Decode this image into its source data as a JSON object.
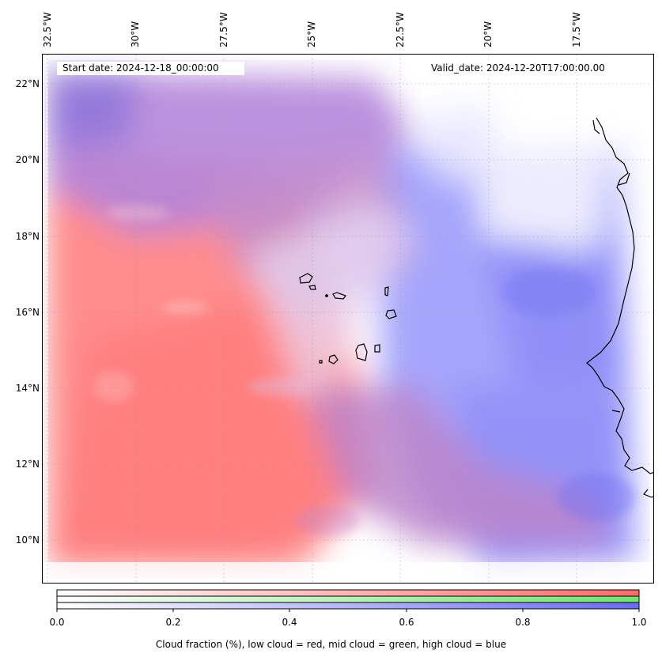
{
  "map": {
    "start_date": "Start date: 2024-12-18_00:00:00",
    "valid_date": "Valid_date: 2024-12-20T17:00:00.00",
    "lon_ticks": [
      "32.5°W",
      "30°W",
      "27.5°W",
      "25°W",
      "22.5°W",
      "20°W",
      "17.5°W"
    ],
    "lat_ticks": [
      "22°N",
      "20°N",
      "18°N",
      "16°N",
      "14°N",
      "12°N",
      "10°N"
    ],
    "extent": {
      "lon_min": -32.6,
      "lon_max": -15.8,
      "lat_min": 8.9,
      "lat_max": 22.8
    },
    "colors": {
      "low_cloud": "#ff7f7f",
      "mid_cloud": "#80e880",
      "high_cloud": "#7f7fff",
      "coastline": "#000000"
    }
  },
  "colorbar": {
    "label": "Cloud fraction (%), low cloud = red, mid cloud = green, high cloud = blue",
    "ticks": [
      "0.0",
      "0.2",
      "0.4",
      "0.6",
      "0.8",
      "1.0"
    ],
    "range": [
      0.0,
      1.0
    ]
  }
}
